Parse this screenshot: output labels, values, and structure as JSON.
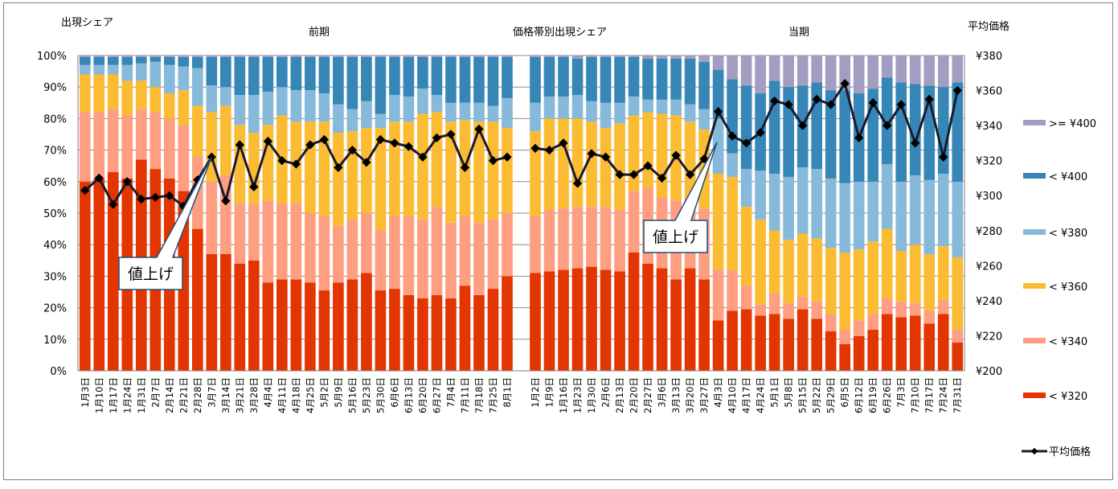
{
  "chart_data": {
    "type": "bar",
    "stacked": true,
    "title": "価格帯別出現シェア",
    "left_axis_title": "出現シェア",
    "right_axis_title": "平均価格",
    "period_labels": [
      "前期",
      "当期"
    ],
    "ylim": [
      0,
      100
    ],
    "y2lim": [
      200,
      380
    ],
    "yticks": [
      "0%",
      "10%",
      "20%",
      "30%",
      "40%",
      "50%",
      "60%",
      "70%",
      "80%",
      "90%",
      "100%"
    ],
    "y2ticks": [
      "¥200",
      "¥220",
      "¥240",
      "¥260",
      "¥280",
      "¥300",
      "¥320",
      "¥340",
      "¥360",
      "¥380"
    ],
    "grid": true,
    "legend_position": "right",
    "bands": [
      {
        "name": "< ¥320",
        "color": "#E33500"
      },
      {
        "name": "< ¥340",
        "color": "#FF9E80"
      },
      {
        "name": "< ¥360",
        "color": "#FBBC33"
      },
      {
        "name": "< ¥380",
        "color": "#86B9DA"
      },
      {
        "name": "< ¥400",
        "color": "#3686B7"
      },
      {
        "name": ">= ¥400",
        "color": "#A39DC1"
      }
    ],
    "line_series": {
      "name": "平均価格",
      "color": "#1A1A2E"
    },
    "periods": [
      {
        "label": "前期",
        "categories": [
          "1月3日",
          "1月10日",
          "1月17日",
          "1月24日",
          "1月31日",
          "2月7日",
          "2月14日",
          "2月21日",
          "2月28日",
          "3月7日",
          "3月14日",
          "3月21日",
          "3月28日",
          "4月4日",
          "4月11日",
          "4月18日",
          "4月25日",
          "5月2日",
          "5月9日",
          "5月16日",
          "5月23日",
          "5月30日",
          "6月6日",
          "6月13日",
          "6月20日",
          "6月27日",
          "7月4日",
          "7月11日",
          "7月18日",
          "7月25日",
          "8月1日"
        ],
        "cumulative_pct": [
          [
            60,
            82,
            94,
            97,
            99.5
          ],
          [
            61,
            82,
            94,
            97,
            99.5
          ],
          [
            63,
            83,
            94,
            97,
            99.5
          ],
          [
            61,
            81,
            92,
            97,
            99.5
          ],
          [
            67,
            83,
            92,
            97.5,
            99.5
          ],
          [
            64,
            82,
            90,
            98,
            99.5
          ],
          [
            61,
            80,
            88,
            97,
            99.5
          ],
          [
            57,
            78,
            89,
            96.5,
            99.5
          ],
          [
            45,
            68,
            84,
            96,
            99.5
          ],
          [
            37,
            60,
            82,
            90.5,
            99.5
          ],
          [
            37,
            62,
            84,
            90,
            99.5
          ],
          [
            34,
            53,
            78,
            87.5,
            99.5
          ],
          [
            35,
            53,
            75.5,
            87.5,
            99.5
          ],
          [
            28,
            54,
            78,
            88.5,
            99.5
          ],
          [
            29,
            53,
            81,
            90,
            99.5
          ],
          [
            29,
            53,
            79,
            89,
            99.5
          ],
          [
            28,
            50,
            79,
            89,
            99.5
          ],
          [
            25.5,
            49,
            79,
            88,
            99.5
          ],
          [
            28,
            46,
            75.5,
            84.5,
            99.5
          ],
          [
            29,
            48,
            76,
            83,
            99.5
          ],
          [
            31,
            50,
            77,
            85.5,
            99.5
          ],
          [
            25.5,
            44.5,
            77,
            81.5,
            99.5
          ],
          [
            26,
            49,
            79,
            87.5,
            99.5
          ],
          [
            24,
            49,
            79,
            87,
            99.5
          ],
          [
            23,
            48,
            81.5,
            89.5,
            99.5
          ],
          [
            24,
            52,
            82,
            87.5,
            99.5
          ],
          [
            23,
            47,
            79,
            85,
            99.5
          ],
          [
            27,
            49,
            79.5,
            85,
            99.5
          ],
          [
            24,
            47,
            79,
            85,
            99.5
          ],
          [
            26,
            48,
            79,
            84,
            99.5
          ],
          [
            30,
            50,
            77,
            86.5,
            99.5
          ]
        ],
        "avg_price": [
          303,
          310,
          295,
          308,
          298,
          299,
          300,
          294,
          309,
          322,
          297,
          329,
          305,
          331,
          320,
          318,
          329,
          332,
          316,
          326,
          319,
          332,
          330,
          328,
          322,
          333,
          335,
          316,
          338,
          320,
          322
        ]
      },
      {
        "label": "当期",
        "categories": [
          "1月2日",
          "1月9日",
          "1月16日",
          "1月23日",
          "1月30日",
          "2月6日",
          "2月13日",
          "2月20日",
          "2月27日",
          "3月6日",
          "3月13日",
          "3月20日",
          "3月27日",
          "4月3日",
          "4月10日",
          "4月17日",
          "4月24日",
          "5月1日",
          "5月8日",
          "5月15日",
          "5月22日",
          "5月29日",
          "6月5日",
          "6月12日",
          "6月19日",
          "6月26日",
          "7月3日",
          "7月10日",
          "7月17日",
          "7月24日",
          "7月31日"
        ],
        "cumulative_pct": [
          [
            31,
            49,
            76,
            85,
            99.5
          ],
          [
            31.5,
            51,
            80,
            87,
            99.5
          ],
          [
            32,
            51.5,
            80,
            87,
            99.5
          ],
          [
            32.5,
            52,
            80,
            87.5,
            99
          ],
          [
            33,
            52,
            79,
            85.5,
            99.5
          ],
          [
            32,
            52,
            77,
            85,
            99.5
          ],
          [
            31.5,
            51,
            78.5,
            85,
            99.5
          ],
          [
            37.5,
            57,
            81,
            87,
            99.5
          ],
          [
            34,
            58,
            82,
            86,
            99
          ],
          [
            32.5,
            55,
            81.5,
            86,
            99
          ],
          [
            29,
            54,
            81,
            86,
            99
          ],
          [
            32.5,
            55,
            79,
            84.5,
            99
          ],
          [
            29,
            51.5,
            76.5,
            83,
            98
          ],
          [
            16,
            32,
            62.5,
            80,
            95.5
          ],
          [
            19,
            32,
            61.5,
            69,
            92.5
          ],
          [
            19.5,
            27,
            52,
            64,
            90.5
          ],
          [
            17.5,
            21,
            48,
            63.5,
            88
          ],
          [
            18,
            24.5,
            44.5,
            62.5,
            92
          ],
          [
            16.5,
            21.5,
            41.5,
            61.5,
            90
          ],
          [
            19.5,
            23.5,
            43.5,
            64.5,
            90.5
          ],
          [
            16.5,
            22,
            42,
            64,
            91.5
          ],
          [
            12.5,
            18,
            39,
            61,
            89
          ],
          [
            8.5,
            13,
            37.5,
            59.5,
            89
          ],
          [
            11,
            16,
            38.5,
            60,
            88
          ],
          [
            13,
            18,
            41,
            60,
            89.5
          ],
          [
            18,
            23,
            45,
            65.5,
            93
          ],
          [
            17,
            22,
            38,
            60,
            91.5
          ],
          [
            17.5,
            21.5,
            40,
            62,
            91
          ],
          [
            15,
            19,
            37,
            60.5,
            90.5
          ],
          [
            18,
            22.5,
            39.5,
            62.5,
            90
          ],
          [
            9,
            13,
            36,
            60,
            91.5
          ]
        ],
        "avg_price": [
          327,
          326,
          330,
          307,
          324,
          322,
          312,
          312,
          317,
          310,
          323,
          312,
          321,
          348,
          334,
          330,
          336,
          354,
          352,
          340,
          355,
          352,
          364,
          333,
          353,
          340,
          352,
          330,
          355,
          322,
          360
        ]
      }
    ],
    "annotations": [
      {
        "text": "値上げ",
        "period": "前期",
        "points_to": "3月7日"
      },
      {
        "text": "値上げ",
        "period": "当期",
        "points_to": "4月3日"
      }
    ]
  }
}
